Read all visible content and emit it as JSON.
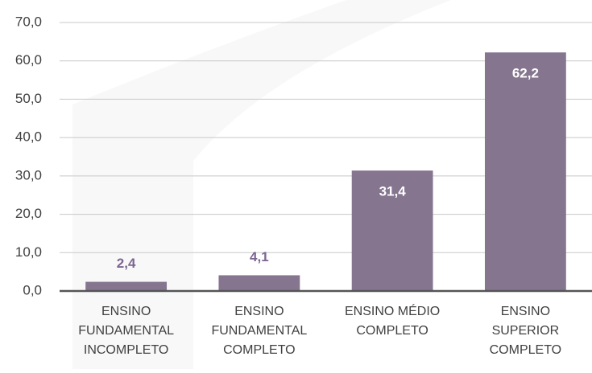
{
  "chart_data": {
    "type": "bar",
    "categories": [
      "ENSINO\nFUNDAMENTAL\nINCOMPLETO",
      "ENSINO\nFUNDAMENTAL\nCOMPLETO",
      "ENSINO MÉDIO\nCOMPLETO",
      "ENSINO\nSUPERIOR\nCOMPLETO"
    ],
    "values": [
      2.4,
      4.1,
      31.4,
      62.2
    ],
    "value_labels": [
      "2,4",
      "4,1",
      "31,4",
      "62,2"
    ],
    "color": "#85758f",
    "ylim": [
      0,
      70
    ],
    "yticks": [
      {
        "value": 0,
        "label": "0,0"
      },
      {
        "value": 10,
        "label": "10,0"
      },
      {
        "value": 20,
        "label": "20,0"
      },
      {
        "value": 30,
        "label": "30,0"
      },
      {
        "value": 40,
        "label": "40,0"
      },
      {
        "value": 50,
        "label": "50,0"
      },
      {
        "value": 60,
        "label": "60,0"
      },
      {
        "value": 70,
        "label": "70,0"
      }
    ],
    "grid": true
  }
}
